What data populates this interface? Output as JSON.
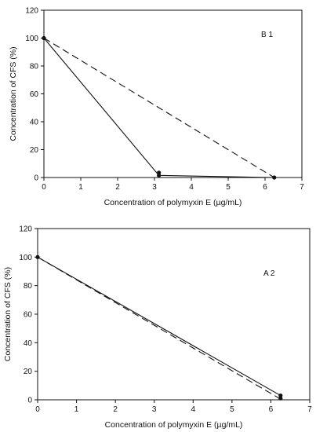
{
  "chart_data": [
    {
      "type": "line",
      "annotation": "B 1",
      "xlabel": "Concentration of polymyxin E (µg/mL)",
      "ylabel": "Concentration of CFS (%)",
      "xlim": [
        0,
        7
      ],
      "ylim": [
        0,
        120
      ],
      "xticks": [
        0,
        1,
        2,
        3,
        4,
        5,
        6,
        7
      ],
      "yticks": [
        0,
        20,
        40,
        60,
        80,
        100,
        120
      ],
      "grid": false,
      "series": [
        {
          "style": "solid",
          "color": "#111111",
          "x": [
            0,
            3.12,
            6.25
          ],
          "y": [
            100,
            1.5,
            0
          ]
        },
        {
          "style": "dashed",
          "color": "#111111",
          "x": [
            0,
            6.25
          ],
          "y": [
            100,
            0
          ]
        }
      ],
      "markers": [
        {
          "x": 0,
          "y": 100
        },
        {
          "x": 3.12,
          "y": 3.5
        },
        {
          "x": 3.12,
          "y": 1.5
        },
        {
          "x": 6.25,
          "y": 0
        }
      ]
    },
    {
      "type": "line",
      "annotation": "A 2",
      "xlabel": "Concentration  of polymyxin E (µg/mL)",
      "ylabel": "Concentration of CFS (%)",
      "xlim": [
        0,
        7
      ],
      "ylim": [
        0,
        120
      ],
      "xticks": [
        0,
        1,
        2,
        3,
        4,
        5,
        6,
        7
      ],
      "yticks": [
        0,
        20,
        40,
        60,
        80,
        100,
        120
      ],
      "grid": false,
      "series": [
        {
          "style": "solid",
          "color": "#111111",
          "x": [
            0,
            6.25
          ],
          "y": [
            100,
            3
          ]
        },
        {
          "style": "dashed",
          "color": "#111111",
          "x": [
            0,
            6.25
          ],
          "y": [
            100,
            0.5
          ]
        }
      ],
      "markers": [
        {
          "x": 0,
          "y": 100
        },
        {
          "x": 6.25,
          "y": 3
        },
        {
          "x": 6.25,
          "y": 1
        }
      ]
    }
  ]
}
